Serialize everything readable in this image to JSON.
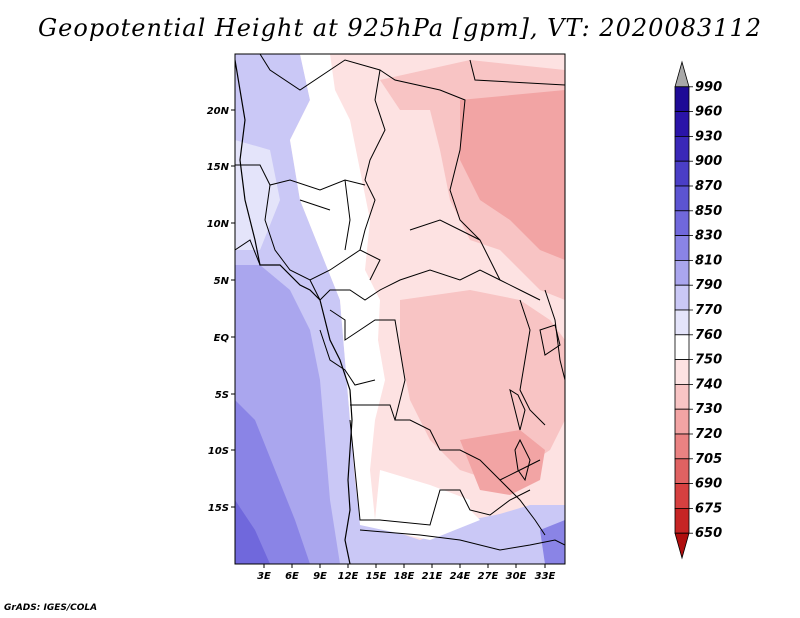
{
  "title": "Geopotential Height at 925hPa [gpm], VT: 2020083112",
  "footer": "GrADS: IGES/COLA",
  "map": {
    "lat_labels": [
      "20N",
      "15N",
      "10N",
      "5N",
      "EQ",
      "5S",
      "10S",
      "15S"
    ],
    "lon_labels": [
      "3E",
      "6E",
      "9E",
      "12E",
      "15E",
      "18E",
      "21E",
      "24E",
      "27E",
      "30E",
      "33E"
    ]
  },
  "colorbar": {
    "levels": [
      "990",
      "960",
      "930",
      "900",
      "870",
      "850",
      "830",
      "810",
      "790",
      "770",
      "760",
      "750",
      "740",
      "730",
      "720",
      "705",
      "690",
      "675",
      "650"
    ],
    "colors": [
      "#a8a8a8",
      "#1e0a96",
      "#2a14a8",
      "#3a28b8",
      "#4a3ec6",
      "#5c54d2",
      "#7068dc",
      "#8a84e6",
      "#aaa6ee",
      "#cac8f6",
      "#e4e4fa",
      "#ffffff",
      "#fde2e2",
      "#f8c4c4",
      "#f2a4a4",
      "#ea8282",
      "#e06262",
      "#d64040",
      "#c62424",
      "#b00e0e"
    ]
  }
}
